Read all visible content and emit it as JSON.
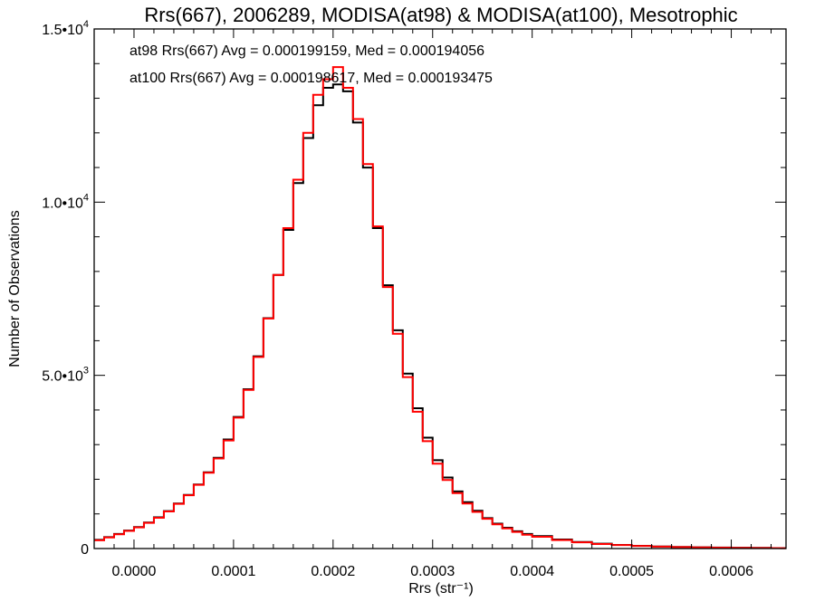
{
  "chart_data": {
    "type": "line",
    "title": "Rrs(667), 2006289, MODISA(at98) & MODISA(at100), Mesotrophic",
    "xlabel": "Rrs (str⁻¹)",
    "ylabel": "Number of Observations",
    "xlim": [
      -4e-05,
      0.000655
    ],
    "ylim": [
      0,
      15000
    ],
    "xticks": [
      {
        "value": 0.0,
        "label": "0.0000"
      },
      {
        "value": 0.0001,
        "label": "0.0001"
      },
      {
        "value": 0.0002,
        "label": "0.0002"
      },
      {
        "value": 0.0003,
        "label": "0.0003"
      },
      {
        "value": 0.0004,
        "label": "0.0004"
      },
      {
        "value": 0.0005,
        "label": "0.0005"
      },
      {
        "value": 0.0006,
        "label": "0.0006"
      }
    ],
    "yticks": [
      {
        "value": 0,
        "label": "0"
      },
      {
        "value": 5000,
        "label": "5.0•10",
        "exp": "3"
      },
      {
        "value": 10000,
        "label": "1.0•10",
        "exp": "4"
      },
      {
        "value": 15000,
        "label": "1.5•10",
        "exp": "4"
      }
    ],
    "legend_placement": "top-left",
    "annotations": [
      {
        "text": "at98 Rrs(667) Avg = 0.000199159, Med = 0.000194056",
        "color": "#000000"
      },
      {
        "text": "at100 Rrs(667) Avg = 0.000198617, Med = 0.000193475",
        "color": "#ff0000"
      }
    ],
    "series": [
      {
        "color": "#000000",
        "style": "step",
        "x": [
          -4e-05,
          -3e-05,
          -2e-05,
          -1e-05,
          0.0,
          1e-05,
          2e-05,
          3e-05,
          4e-05,
          5e-05,
          6e-05,
          7e-05,
          8e-05,
          9e-05,
          0.0001,
          0.00011,
          0.00012,
          0.00013,
          0.00014,
          0.00015,
          0.00016,
          0.00017,
          0.00018,
          0.00019,
          0.0002,
          0.00021,
          0.00022,
          0.00023,
          0.00024,
          0.00025,
          0.00026,
          0.00027,
          0.00028,
          0.00029,
          0.0003,
          0.00031,
          0.00032,
          0.00033,
          0.00034,
          0.00035,
          0.00036,
          0.00037,
          0.00038,
          0.00039,
          0.0004,
          0.00042,
          0.00044,
          0.00046,
          0.00048,
          0.0005,
          0.00052,
          0.00054,
          0.00056,
          0.00058,
          0.0006,
          0.00062,
          0.00064,
          0.00065
        ],
        "y": [
          250,
          330,
          420,
          520,
          620,
          750,
          900,
          1080,
          1300,
          1550,
          1850,
          2200,
          2620,
          3150,
          3800,
          4600,
          5550,
          6650,
          7900,
          9200,
          10550,
          11850,
          12800,
          13300,
          13400,
          13200,
          12300,
          11000,
          9250,
          7600,
          6300,
          5050,
          4050,
          3200,
          2550,
          2050,
          1650,
          1340,
          1090,
          880,
          720,
          600,
          500,
          420,
          360,
          260,
          190,
          140,
          105,
          80,
          60,
          45,
          35,
          28,
          22,
          18,
          14,
          12
        ]
      },
      {
        "color": "#ff0000",
        "style": "step",
        "x": [
          -4e-05,
          -3e-05,
          -2e-05,
          -1e-05,
          0.0,
          1e-05,
          2e-05,
          3e-05,
          4e-05,
          5e-05,
          6e-05,
          7e-05,
          8e-05,
          9e-05,
          0.0001,
          0.00011,
          0.00012,
          0.00013,
          0.00014,
          0.00015,
          0.00016,
          0.00017,
          0.00018,
          0.00019,
          0.0002,
          0.00021,
          0.00022,
          0.00023,
          0.00024,
          0.00025,
          0.00026,
          0.00027,
          0.00028,
          0.00029,
          0.0003,
          0.00031,
          0.00032,
          0.00033,
          0.00034,
          0.00035,
          0.00036,
          0.00037,
          0.00038,
          0.00039,
          0.0004,
          0.00042,
          0.00044,
          0.00046,
          0.00048,
          0.0005,
          0.00052,
          0.00054,
          0.00056,
          0.00058,
          0.0006,
          0.00062,
          0.00064,
          0.00065
        ],
        "y": [
          240,
          320,
          410,
          510,
          610,
          740,
          890,
          1070,
          1290,
          1540,
          1840,
          2190,
          2600,
          3120,
          3780,
          4580,
          5530,
          6640,
          7900,
          9250,
          10650,
          12000,
          13100,
          13550,
          13900,
          13300,
          12400,
          11100,
          9300,
          7550,
          6200,
          4950,
          3950,
          3100,
          2450,
          1980,
          1600,
          1300,
          1060,
          860,
          700,
          580,
          480,
          400,
          340,
          245,
          180,
          130,
          100,
          75,
          55,
          42,
          32,
          26,
          20,
          16,
          12,
          10
        ]
      }
    ]
  }
}
